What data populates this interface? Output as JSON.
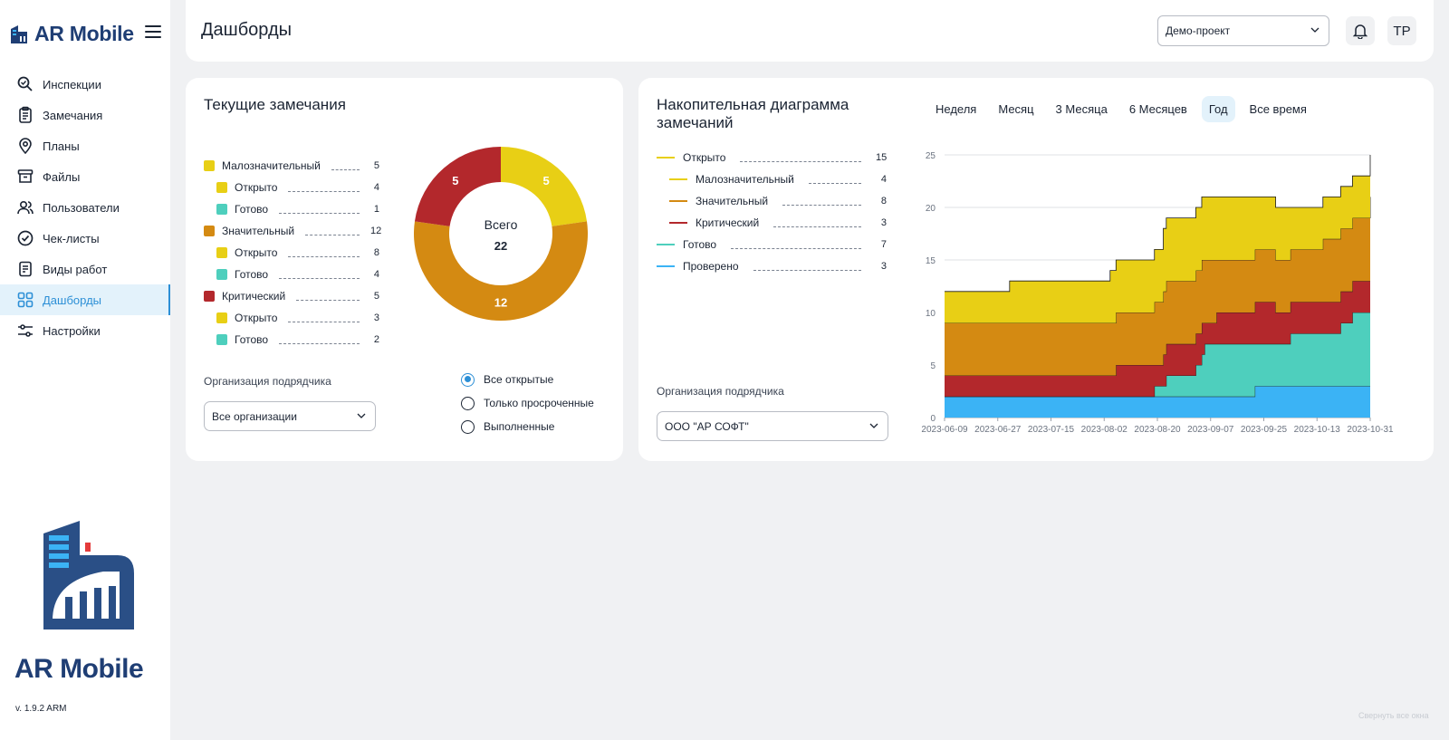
{
  "app": {
    "name": "AR Mobile",
    "version": "v. 1.9.2 ARM"
  },
  "sidebar": {
    "items": [
      {
        "label": "Инспекции",
        "icon": "search-icon"
      },
      {
        "label": "Замечания",
        "icon": "clipboard-icon"
      },
      {
        "label": "Планы",
        "icon": "map-pin-icon"
      },
      {
        "label": "Файлы",
        "icon": "archive-icon"
      },
      {
        "label": "Пользователи",
        "icon": "users-icon"
      },
      {
        "label": "Чек-листы",
        "icon": "check-circle-icon"
      },
      {
        "label": "Виды работ",
        "icon": "document-list-icon"
      },
      {
        "label": "Дашборды",
        "icon": "grid-icon",
        "active": true
      },
      {
        "label": "Настройки",
        "icon": "sliders-icon"
      }
    ]
  },
  "header": {
    "title": "Дашборды",
    "project": "Демо-проект",
    "avatar_initials": "TP"
  },
  "current_issues": {
    "title": "Текущие замечания",
    "legend": [
      {
        "label": "Малозначительный",
        "count": "5",
        "color": "#e8cf15",
        "sub": false
      },
      {
        "label": "Открыто",
        "count": "4",
        "color": "#e8cf15",
        "sub": true
      },
      {
        "label": "Готово",
        "count": "1",
        "color": "#4ecfbd",
        "sub": true
      },
      {
        "label": "Значительный",
        "count": "12",
        "color": "#d48a12",
        "sub": false
      },
      {
        "label": "Открыто",
        "count": "8",
        "color": "#e8cf15",
        "sub": true
      },
      {
        "label": "Готово",
        "count": "4",
        "color": "#4ecfbd",
        "sub": true
      },
      {
        "label": "Критический",
        "count": "5",
        "color": "#b3282c",
        "sub": false
      },
      {
        "label": "Открыто",
        "count": "3",
        "color": "#e8cf15",
        "sub": true
      },
      {
        "label": "Готово",
        "count": "2",
        "color": "#4ecfbd",
        "sub": true
      }
    ],
    "donut": {
      "total_label": "Всего",
      "total": "22",
      "slices": [
        {
          "value": 5,
          "label": "5",
          "color": "#e8cf15"
        },
        {
          "value": 12,
          "label": "12",
          "color": "#d48a12"
        },
        {
          "value": 5,
          "label": "5",
          "color": "#b3282c"
        }
      ]
    },
    "org_label": "Организация подрядчика",
    "org_value": "Все организации",
    "filters": [
      {
        "label": "Все открытые",
        "selected": true
      },
      {
        "label": "Только просроченные",
        "selected": false
      },
      {
        "label": "Выполненные",
        "selected": false
      }
    ]
  },
  "cumulative": {
    "title_line1": "Накопительная диаграмма",
    "title_line2": "замечаний",
    "tabs": [
      "Неделя",
      "Месяц",
      "3 Месяца",
      "6 Месяцев",
      "Год",
      "Все время"
    ],
    "active_tab": "Год",
    "legend": [
      {
        "label": "Открыто",
        "count": "15",
        "color": "#e8cf15",
        "sub": false
      },
      {
        "label": "Малозначительный",
        "count": "4",
        "color": "#e8cf15",
        "sub": true
      },
      {
        "label": "Значительный",
        "count": "8",
        "color": "#d48a12",
        "sub": true
      },
      {
        "label": "Критический",
        "count": "3",
        "color": "#b3282c",
        "sub": true
      },
      {
        "label": "Готово",
        "count": "7",
        "color": "#4ecfbd",
        "sub": false
      },
      {
        "label": "Проверено",
        "count": "3",
        "color": "#3bb3f5",
        "sub": false
      }
    ],
    "org_label": "Организация подрядчика",
    "org_value": "ООО \"АР СОФТ\""
  },
  "chart_data": {
    "type": "area",
    "stacked": true,
    "x": [
      0,
      9,
      18,
      22,
      27,
      36,
      38,
      42,
      47,
      56,
      58,
      65,
      71,
      74,
      75,
      82,
      85,
      87,
      88,
      89,
      90,
      91,
      92,
      96,
      98,
      103,
      105,
      111,
      112,
      117,
      118,
      128,
      129,
      134,
      138,
      144
    ],
    "x_ticks": [
      "2023-06-09",
      "2023-06-27",
      "2023-07-15",
      "2023-08-02",
      "2023-08-20",
      "2023-09-07",
      "2023-09-25",
      "2023-10-13",
      "2023-10-31"
    ],
    "x_tick_positions": [
      0,
      18,
      36,
      54,
      72,
      90,
      108,
      126,
      144
    ],
    "ylim": [
      0,
      25
    ],
    "y_ticks": [
      0,
      5,
      10,
      15,
      20,
      25
    ],
    "series": [
      {
        "name": "Проверено",
        "color": "#3bb3f5",
        "values": [
          2,
          2,
          2,
          2,
          2,
          2,
          2,
          2,
          2,
          2,
          2,
          2,
          2,
          2,
          2,
          2,
          2,
          2,
          2,
          2,
          2,
          2,
          2,
          2,
          2,
          2,
          3,
          3,
          3,
          3,
          3,
          3,
          3,
          3,
          3,
          3
        ]
      },
      {
        "name": "Готово",
        "color": "#4ecfbd",
        "values": [
          0,
          0,
          0,
          0,
          0,
          0,
          0,
          0,
          0,
          0,
          0,
          0,
          1,
          1,
          2,
          2,
          3,
          4,
          5,
          5,
          5,
          5,
          5,
          5,
          5,
          5,
          4,
          4,
          4,
          5,
          5,
          5,
          5,
          6,
          7,
          7
        ]
      },
      {
        "name": "Критический",
        "color": "#b3282c",
        "values": [
          2,
          2,
          2,
          2,
          2,
          2,
          2,
          2,
          2,
          2,
          3,
          3,
          2,
          3,
          3,
          3,
          3,
          3,
          2,
          2,
          2,
          2,
          3,
          3,
          3,
          3,
          4,
          4,
          3,
          3,
          3,
          3,
          3,
          3,
          3,
          3
        ]
      },
      {
        "name": "Значительный",
        "color": "#d48a12",
        "values": [
          5,
          5,
          5,
          5,
          5,
          5,
          5,
          5,
          5,
          5,
          5,
          5,
          6,
          6,
          6,
          6,
          6,
          6,
          6,
          6,
          6,
          6,
          5,
          5,
          5,
          5,
          5,
          5,
          5,
          5,
          5,
          6,
          6,
          6,
          6,
          8
        ]
      },
      {
        "name": "Малозначительный",
        "color": "#e8cf15",
        "values": [
          3,
          3,
          3,
          4,
          4,
          4,
          4,
          4,
          4,
          5,
          5,
          5,
          5,
          6,
          6,
          6,
          6,
          6,
          6,
          6,
          6,
          6,
          6,
          6,
          6,
          6,
          5,
          5,
          5,
          4,
          4,
          4,
          4,
          4,
          4,
          4
        ]
      }
    ]
  },
  "footer": {
    "collapse_hint": "Свернуть все окна"
  }
}
